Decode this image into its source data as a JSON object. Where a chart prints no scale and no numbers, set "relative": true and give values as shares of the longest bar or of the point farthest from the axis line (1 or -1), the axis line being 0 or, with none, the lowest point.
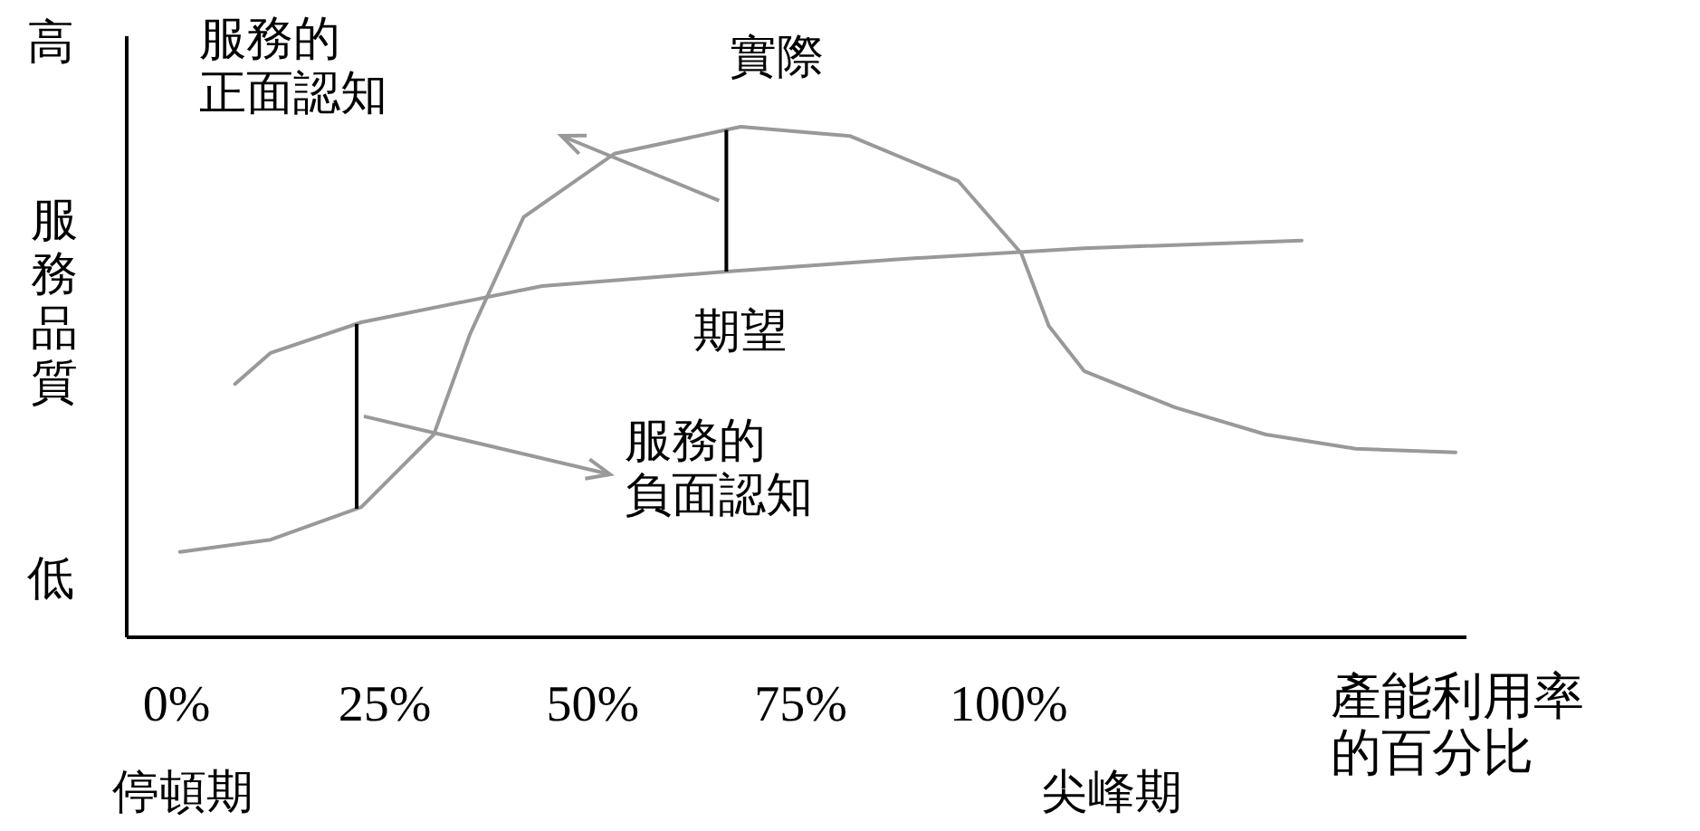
{
  "chart_data": {
    "type": "line",
    "relative": true,
    "ylabel": "服務品質",
    "xlabel": "產能利用率的百分比",
    "xlim": [
      -6,
      155
    ],
    "xticks": [
      {
        "value": 0,
        "label": "0%"
      },
      {
        "value": 25,
        "label": "25%"
      },
      {
        "value": 50,
        "label": "50%"
      },
      {
        "value": 75,
        "label": "75%"
      },
      {
        "value": 100,
        "label": "100%"
      }
    ],
    "series": [
      {
        "name": "實際",
        "color": "#999999",
        "x": [
          0.4,
          11.3,
          22.2,
          30.9,
          35.2,
          41.7,
          52.6,
          67.8,
          80.9,
          93.9,
          101.5,
          104.8,
          109.1,
          120,
          130.9,
          141.7,
          153.7
        ],
        "values": [
          0.167,
          0.191,
          0.255,
          0.397,
          0.592,
          0.823,
          0.947,
          1,
          0.982,
          0.894,
          0.752,
          0.61,
          0.521,
          0.45,
          0.397,
          0.369,
          0.362
        ]
      },
      {
        "name": "期望",
        "color": "#999999",
        "x": [
          7,
          11.3,
          22.2,
          43.9,
          65.7,
          87.4,
          109.1,
          135.2
        ],
        "values": [
          0.496,
          0.557,
          0.617,
          0.688,
          0.716,
          0.741,
          0.762,
          0.777
        ]
      }
    ],
    "annotations": [
      "高",
      "低",
      "停頓期",
      "尖峰期",
      "服務的正面認知",
      "服務的負面認知"
    ],
    "legend": false,
    "grid": false,
    "line_style": "solid"
  }
}
